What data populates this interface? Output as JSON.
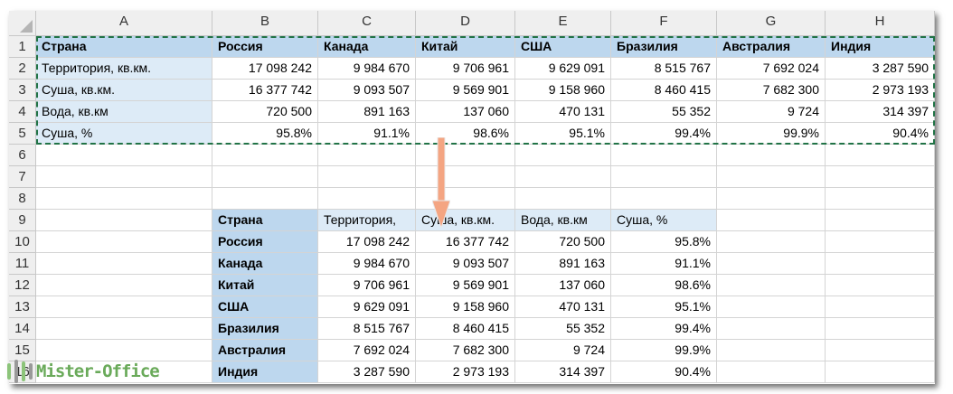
{
  "columns": [
    "A",
    "B",
    "C",
    "D",
    "E",
    "F",
    "G",
    "H"
  ],
  "rows": [
    "1",
    "2",
    "3",
    "4",
    "5",
    "6",
    "7",
    "8",
    "9",
    "10",
    "11",
    "12",
    "13",
    "14",
    "15",
    "16"
  ],
  "source_table": {
    "header": [
      "Страна",
      "Россия",
      "Канада",
      "Китай",
      "США",
      "Бразилия",
      "Австралия",
      "Индия"
    ],
    "rows": [
      [
        "Территория, кв.км.",
        "17 098 242",
        "9 984 670",
        "9 706 961",
        "9 629 091",
        "8 515 767",
        "7 692 024",
        "3 287 590"
      ],
      [
        "Суша, кв.км.",
        "16 377 742",
        "9 093 507",
        "9 569 901",
        "9 158 960",
        "8 460 415",
        "7 682 300",
        "2 973 193"
      ],
      [
        "Вода, кв.км",
        "720 500",
        "891 163",
        "137 060",
        "470 131",
        "55 352",
        "9 724",
        "314 397"
      ],
      [
        "Суша, %",
        "95.8%",
        "91.1%",
        "98.6%",
        "95.1%",
        "99.4%",
        "99.9%",
        "90.4%"
      ]
    ]
  },
  "transposed_table": {
    "header": [
      "Страна",
      "Территория,",
      "Суша, кв.км.",
      "Вода, кв.км",
      "Суша, %"
    ],
    "rows": [
      [
        "Россия",
        "17 098 242",
        "16 377 742",
        "720 500",
        "95.8%"
      ],
      [
        "Канада",
        "9 984 670",
        "9 093 507",
        "891 163",
        "91.1%"
      ],
      [
        "Китай",
        "9 706 961",
        "9 569 901",
        "137 060",
        "98.6%"
      ],
      [
        "США",
        "9 629 091",
        "9 158 960",
        "470 131",
        "95.1%"
      ],
      [
        "Бразилия",
        "8 515 767",
        "8 460 415",
        "55 352",
        "99.4%"
      ],
      [
        "Австралия",
        "7 692 024",
        "7 682 300",
        "9 724",
        "99.9%"
      ],
      [
        "Индия",
        "3 287 590",
        "2 973 193",
        "314 397",
        "90.4%"
      ]
    ]
  },
  "watermark": "Mister-Office",
  "colors": {
    "header_blue": "#bdd7ee",
    "light_blue": "#ddebf7",
    "marquee": "#217346",
    "arrow": "#f4a582"
  }
}
